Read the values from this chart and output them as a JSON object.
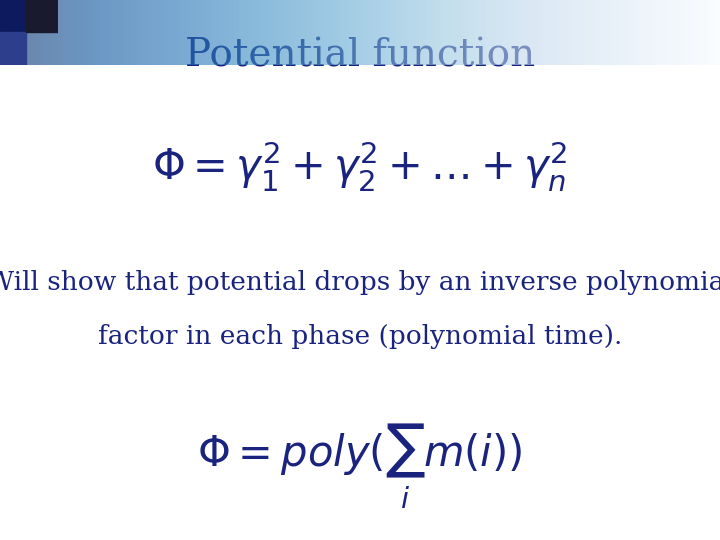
{
  "title": "Potential function",
  "title_color": "#1a237e",
  "title_fontsize": 28,
  "formula1": "$\\Phi = \\gamma_1^2 + \\gamma_2^2 + ...+ \\gamma_n^2$",
  "formula1_color": "#1a237e",
  "formula1_fontsize": 30,
  "text1": "Will show that potential drops by an inverse polynomial",
  "text1_color": "#1a237e",
  "text1_fontsize": 19,
  "text2": "factor in each phase (polynomial time).",
  "text2_color": "#1a237e",
  "text2_fontsize": 19,
  "formula2": "$\\Phi = poly(\\sum_i m(i))$",
  "formula2_color": "#1a237e",
  "formula2_fontsize": 30,
  "bg_color": "#ffffff",
  "header_bar_color1": "#1a237e",
  "header_bar_color2": "#b0bec5"
}
